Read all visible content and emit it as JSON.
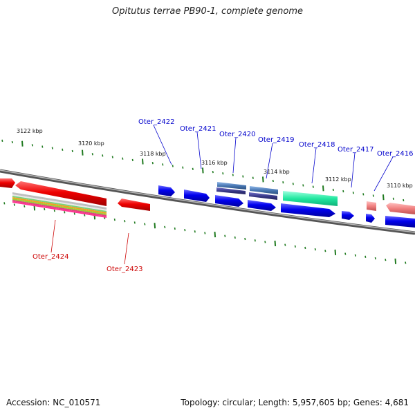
{
  "title": "Opitutus terrae PB90-1, complete genome",
  "accession_text": "Accession: NC_010571",
  "summary_text": "Topology: circular; Length: 5,957,605 bp; Genes: 4,681",
  "colors": {
    "backbone": "#7f7f7f",
    "tick": "#1f7a1f",
    "forward_label": "#0000cc",
    "reverse_label": "#cc0000",
    "gene_blue": "#0000ee",
    "gene_red": "#ee0000",
    "gene_green": "#22e8a0",
    "gene_steel": "#4a78b4",
    "gene_navy": "#3a3a8a",
    "gene_salmon": "#f08080"
  },
  "scale": {
    "unit": "kbp",
    "labels": [
      {
        "kbp": 3122,
        "text": "3122 kbp",
        "side": "top"
      },
      {
        "kbp": 3120,
        "text": "3120 kbp",
        "side": "top"
      },
      {
        "kbp": 3118,
        "text": "3118 kbp",
        "side": "top"
      },
      {
        "kbp": 3116,
        "text": "3116 kbp",
        "side": "top"
      },
      {
        "kbp": 3114,
        "text": "3114 kbp",
        "side": "top"
      },
      {
        "kbp": 3112,
        "text": "3112 kbp",
        "side": "top"
      },
      {
        "kbp": 3110,
        "text": "3110 kbp",
        "side": "top"
      }
    ]
  },
  "genes": {
    "forward": [
      {
        "label": "Oter_2422",
        "color": "#0000ee"
      },
      {
        "label": "Oter_2421",
        "color": "#0000ee"
      },
      {
        "label": "Oter_2420",
        "color": "#0000ee"
      },
      {
        "label": "Oter_2419",
        "color": "#0000ee"
      },
      {
        "label": "Oter_2418",
        "color": "#0000ee"
      },
      {
        "label": "Oter_2417",
        "color": "#0000ee"
      },
      {
        "label": "Oter_2416",
        "color": "#0000ee"
      }
    ],
    "reverse": [
      {
        "label": "Oter_2424",
        "color": "#ee0000"
      },
      {
        "label": "Oter_2423",
        "color": "#ee0000"
      }
    ]
  }
}
